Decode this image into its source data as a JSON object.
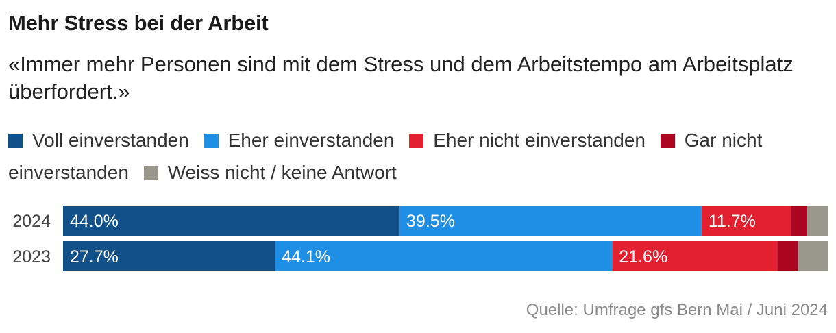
{
  "chart_data": {
    "type": "bar",
    "orientation": "horizontal",
    "stacked": true,
    "title": "Mehr Stress bei der Arbeit",
    "subtitle": "«Immer mehr Personen sind mit dem Stress und dem Arbeitstempo am Arbeitsplatz überfordert.»",
    "categories": [
      "2024",
      "2023"
    ],
    "series": [
      {
        "name": "Voll einverstanden",
        "color": "#12508a",
        "values": [
          44.0,
          27.7
        ],
        "labels": [
          "44.0%",
          "27.7%"
        ]
      },
      {
        "name": "Eher einverstanden",
        "color": "#1f8ee5",
        "values": [
          39.5,
          44.1
        ],
        "labels": [
          "39.5%",
          "44.1%"
        ]
      },
      {
        "name": "Eher nicht einverstanden",
        "color": "#e3202f",
        "values": [
          11.7,
          21.6
        ],
        "labels": [
          "11.7%",
          "21.6%"
        ]
      },
      {
        "name": "Gar nicht einverstanden",
        "color": "#ab0521",
        "values": [
          2.1,
          2.7
        ],
        "labels": [
          "",
          ""
        ]
      },
      {
        "name": "Weiss nicht / keine Antwort",
        "color": "#99968b",
        "values": [
          2.7,
          3.9
        ],
        "labels": [
          "",
          ""
        ]
      }
    ],
    "xlim": [
      0,
      100
    ],
    "grid": false,
    "legend_position": "top",
    "source": "Quelle: Umfrage gfs Bern Mai / Juni 2024"
  }
}
